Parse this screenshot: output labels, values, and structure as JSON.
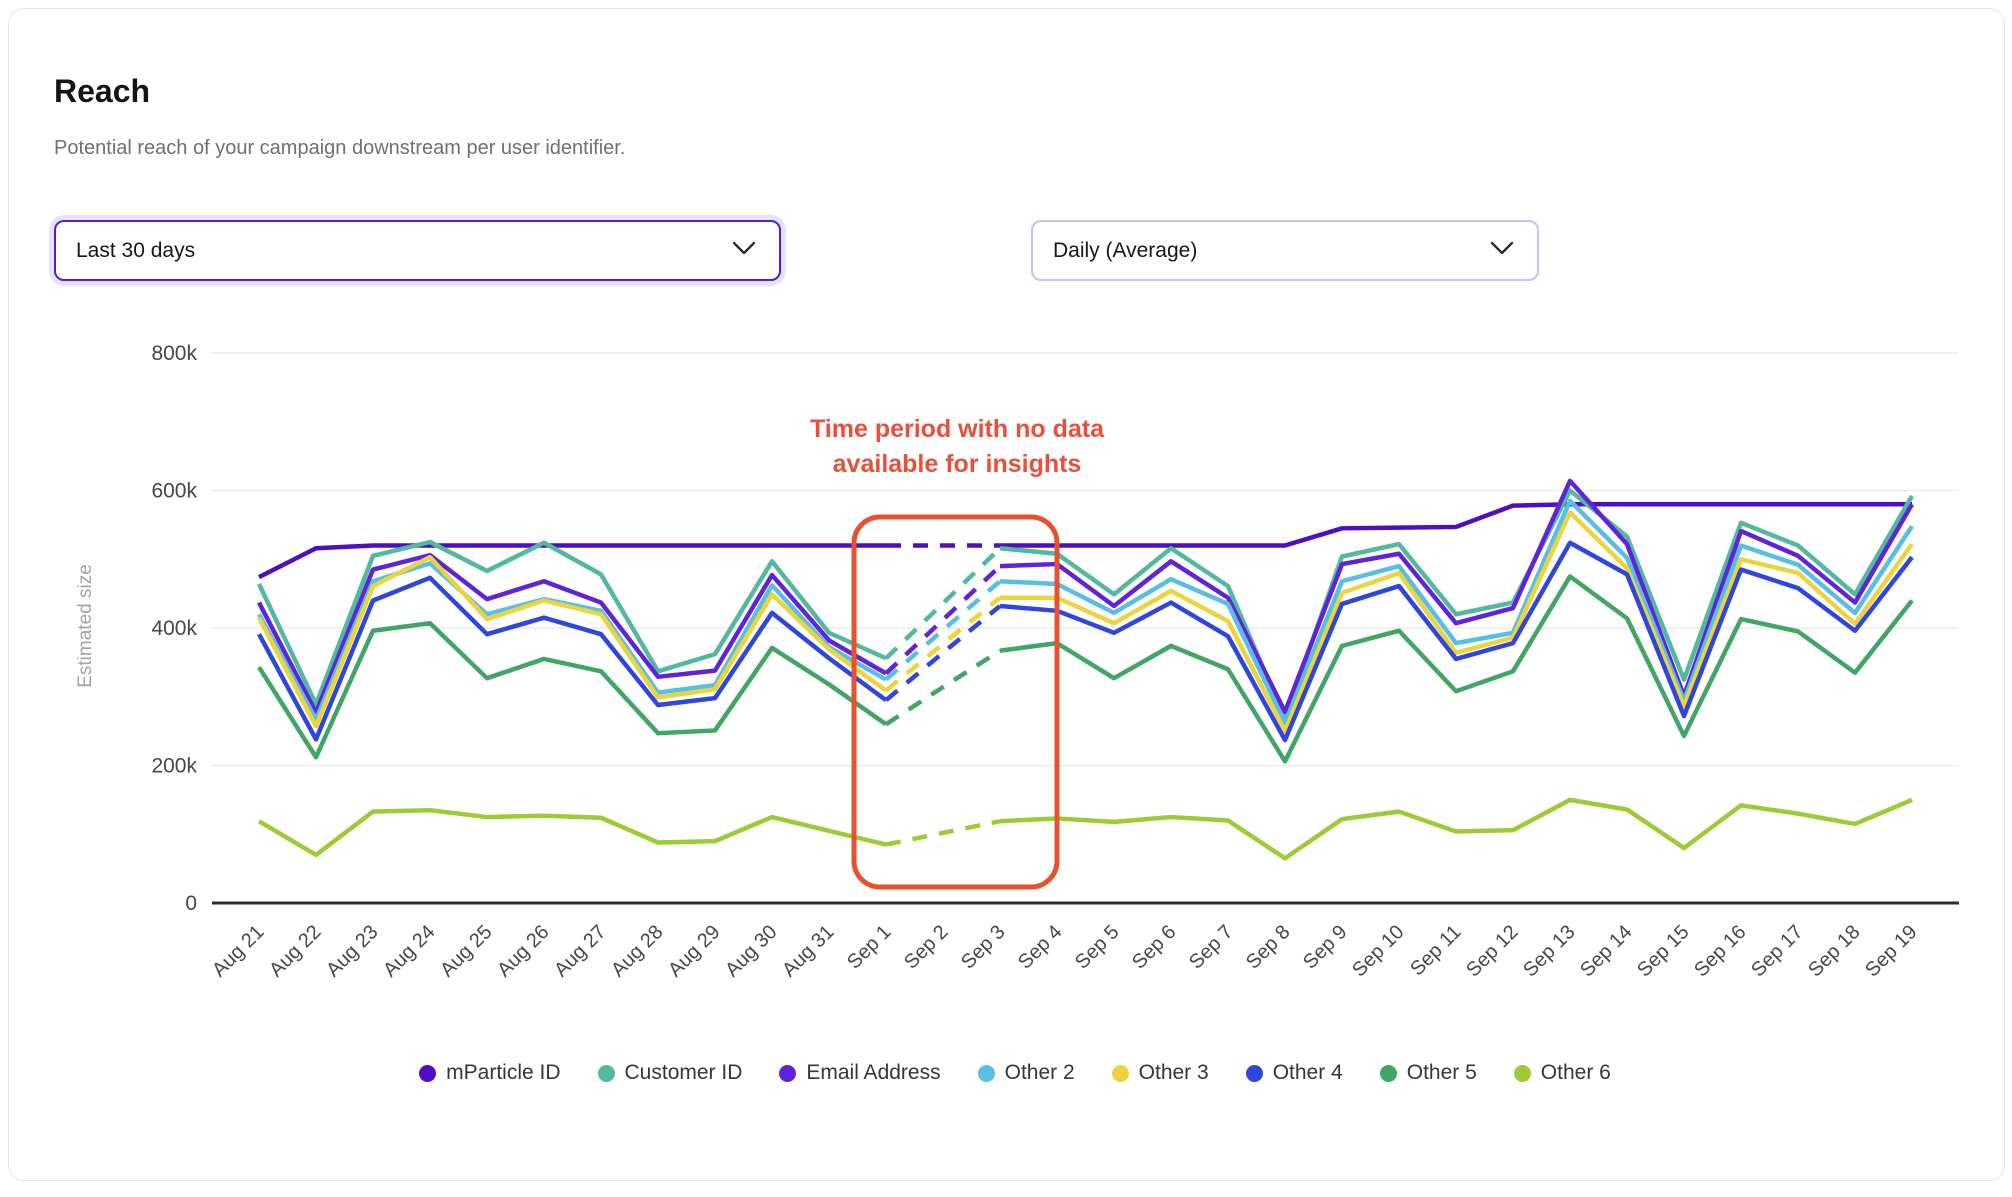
{
  "card": {
    "title": "Reach",
    "subtitle": "Potential reach of your campaign downstream per user identifier."
  },
  "filters": {
    "date_range": {
      "selected": "Last 30 days"
    },
    "granularity": {
      "selected": "Daily (Average)"
    }
  },
  "annotation": {
    "line1": "Time period with no data",
    "line2": "available for insights",
    "color": "#E8503A",
    "box_color": "#E8502E"
  },
  "chart_data": {
    "type": "line",
    "title": "",
    "xlabel": "",
    "ylabel": "Estimated size",
    "unit": "thousands",
    "ylim_thousands": [
      0,
      800
    ],
    "grid": true,
    "legend_position": "bottom",
    "yticks": [
      {
        "label": "0",
        "value": 0
      },
      {
        "label": "200k",
        "value": 200
      },
      {
        "label": "400k",
        "value": 400
      },
      {
        "label": "600k",
        "value": 600
      },
      {
        "label": "800k",
        "value": 800
      }
    ],
    "x": [
      "Aug 21",
      "Aug 22",
      "Aug 23",
      "Aug 24",
      "Aug 25",
      "Aug 26",
      "Aug 27",
      "Aug 28",
      "Aug 29",
      "Aug 30",
      "Aug 31",
      "Sep 1",
      "Sep 2",
      "Sep 3",
      "Sep 4",
      "Sep 5",
      "Sep 6",
      "Sep 7",
      "Sep 8",
      "Sep 9",
      "Sep 10",
      "Sep 11",
      "Sep 12",
      "Sep 13",
      "Sep 14",
      "Sep 15",
      "Sep 16",
      "Sep 17",
      "Sep 18",
      "Sep 19"
    ],
    "no_data_range": {
      "from": "Sep 1",
      "to": "Sep 3"
    },
    "series": [
      {
        "name": "mParticle ID",
        "color": "#4F0EC4",
        "values": [
          474,
          516,
          520,
          520,
          520,
          520,
          520,
          520,
          520,
          520,
          520,
          520,
          520,
          520,
          520,
          520,
          520,
          520,
          520,
          545,
          546,
          547,
          578,
          580,
          580,
          580,
          580,
          580,
          580,
          580
        ]
      },
      {
        "name": "Customer ID",
        "color": "#52B89F",
        "values": [
          464,
          289,
          505,
          525,
          483,
          524,
          478,
          337,
          362,
          497,
          393,
          356,
          436,
          516,
          508,
          449,
          516,
          461,
          268,
          504,
          522,
          420,
          437,
          600,
          533,
          325,
          553,
          520,
          449,
          592
        ]
      },
      {
        "name": "Email Address",
        "color": "#5F24D9",
        "values": [
          437,
          277,
          485,
          506,
          442,
          468,
          437,
          329,
          338,
          477,
          382,
          334,
          412,
          490,
          493,
          432,
          497,
          444,
          278,
          493,
          508,
          407,
          429,
          614,
          522,
          301,
          541,
          505,
          437,
          580
        ]
      },
      {
        "name": "Other 2",
        "color": "#58BFE3",
        "values": [
          420,
          267,
          468,
          494,
          420,
          442,
          425,
          306,
          317,
          462,
          372,
          325,
          397,
          468,
          464,
          422,
          471,
          435,
          262,
          468,
          490,
          378,
          393,
          585,
          502,
          294,
          520,
          492,
          422,
          548
        ]
      },
      {
        "name": "Other 3",
        "color": "#EDD33E",
        "values": [
          415,
          257,
          461,
          503,
          413,
          440,
          420,
          299,
          311,
          449,
          369,
          309,
          377,
          444,
          444,
          407,
          454,
          410,
          250,
          451,
          480,
          364,
          386,
          568,
          487,
          286,
          500,
          480,
          406,
          522
        ]
      },
      {
        "name": "Other 4",
        "color": "#2F46DE",
        "values": [
          391,
          238,
          440,
          473,
          391,
          415,
          391,
          288,
          298,
          422,
          356,
          295,
          364,
          432,
          425,
          393,
          437,
          388,
          237,
          435,
          461,
          355,
          378,
          524,
          478,
          272,
          485,
          458,
          396,
          503
        ]
      },
      {
        "name": "Other 5",
        "color": "#41A565",
        "values": [
          343,
          212,
          396,
          407,
          327,
          355,
          337,
          247,
          251,
          371,
          318,
          260,
          314,
          367,
          378,
          327,
          374,
          340,
          206,
          374,
          396,
          308,
          337,
          475,
          414,
          243,
          413,
          395,
          335,
          440
        ]
      },
      {
        "name": "Other 6",
        "color": "#9DCB35",
        "values": [
          119,
          70,
          133,
          135,
          125,
          127,
          124,
          88,
          90,
          125,
          105,
          85,
          102,
          119,
          123,
          118,
          125,
          120,
          65,
          122,
          133,
          104,
          106,
          150,
          136,
          80,
          142,
          130,
          115,
          150
        ]
      }
    ]
  },
  "colors": {
    "grid": "#EBEBEB",
    "axis": "#2E2E2E",
    "tick_label": "#44474C",
    "focus_ring_border": "#4C1EE0",
    "secondary_border": "#CBBDF5"
  }
}
